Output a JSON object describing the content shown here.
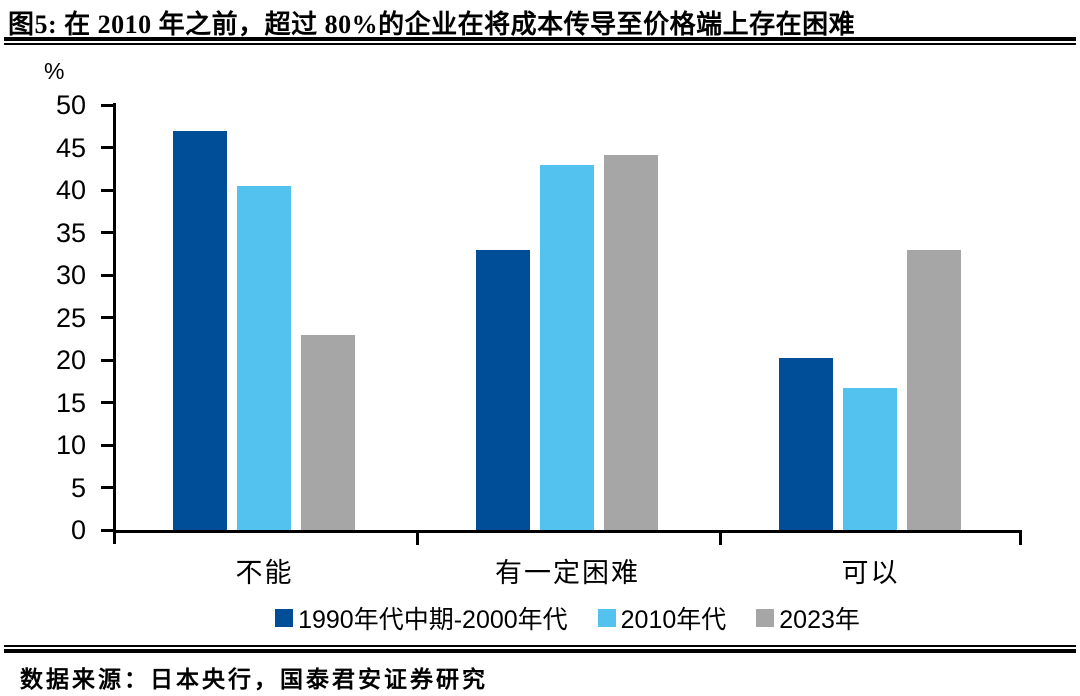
{
  "title": "图5: 在 2010 年之前，超过 80%的企业在将成本传导至价格端上存在困难",
  "source": "数据来源：日本央行，国泰君安证券研究",
  "chart_data": {
    "type": "bar",
    "title": "在 2010 年之前，超过 80%的企业在将成本传导至价格端上存在困难",
    "y_unit": "%",
    "xlabel": "",
    "ylabel": "%",
    "ylim": [
      0,
      50
    ],
    "ytick_step": 5,
    "grid": false,
    "legend_position": "bottom",
    "categories": [
      "不能",
      "有一定困难",
      "可以"
    ],
    "series": [
      {
        "name": "1990年代中期-2000年代",
        "color": "#004E98",
        "values": [
          46.9,
          33.0,
          20.2
        ]
      },
      {
        "name": "2010年代",
        "color": "#54C2EE",
        "values": [
          40.5,
          43.0,
          16.7
        ]
      },
      {
        "name": "2023年",
        "color": "#A6A6A6",
        "values": [
          23.0,
          44.1,
          33.0
        ]
      }
    ]
  },
  "colors": {
    "axis": "#000000",
    "dark_blue": "#004E98",
    "light_blue": "#54C2EE",
    "gray": "#A6A6A6"
  }
}
